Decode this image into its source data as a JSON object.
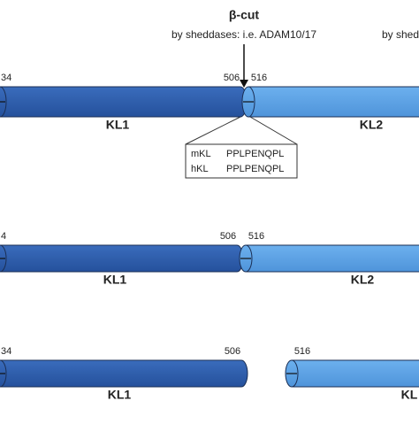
{
  "cut": {
    "title": "β-cut",
    "subtitle": "by sheddases: i.e. ADAM10/17",
    "right_subtitle": "by shed"
  },
  "box": {
    "rows": [
      [
        "mKL",
        "PPLPENQPL"
      ],
      [
        "hKL",
        "PPLPENQPL"
      ]
    ]
  },
  "rows": [
    {
      "start": "34",
      "end1": "506",
      "start2": "516",
      "label1": "KL1",
      "label2": "KL2"
    },
    {
      "start": "4",
      "end1": "506",
      "start2": "516",
      "label1": "KL1",
      "label2": "KL2"
    },
    {
      "start": "34",
      "end1": "506",
      "start2": "516",
      "label1": "KL1",
      "label2": "KL"
    }
  ]
}
